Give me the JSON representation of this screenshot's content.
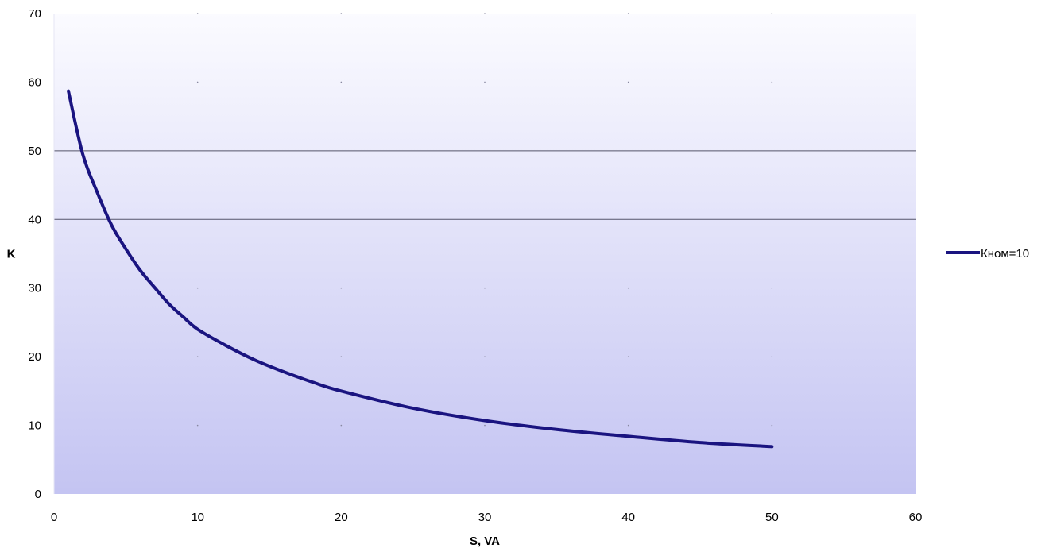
{
  "chart_data": {
    "type": "line",
    "xlabel": "S, VA",
    "ylabel": "K",
    "xlim": [
      0,
      60
    ],
    "ylim": [
      0,
      70
    ],
    "xticks": [
      0,
      10,
      20,
      30,
      40,
      50,
      60
    ],
    "yticks": [
      0,
      10,
      20,
      30,
      40,
      50,
      60,
      70
    ],
    "grid": "horizontal lines at 40 and 50; dotted markers elsewhere",
    "legend_position": "right",
    "series": [
      {
        "name": "Кном=10",
        "color": "#1a1480",
        "x": [
          1,
          2,
          3,
          4,
          5,
          6,
          7,
          8,
          9,
          10,
          12,
          14,
          16,
          18,
          20,
          25,
          30,
          35,
          40,
          45,
          50
        ],
        "y": [
          58.7,
          49.5,
          44.0,
          39.2,
          35.7,
          32.6,
          30.1,
          27.7,
          25.8,
          24.0,
          21.6,
          19.5,
          17.8,
          16.3,
          15.0,
          12.5,
          10.7,
          9.4,
          8.4,
          7.5,
          6.9
        ]
      }
    ]
  }
}
